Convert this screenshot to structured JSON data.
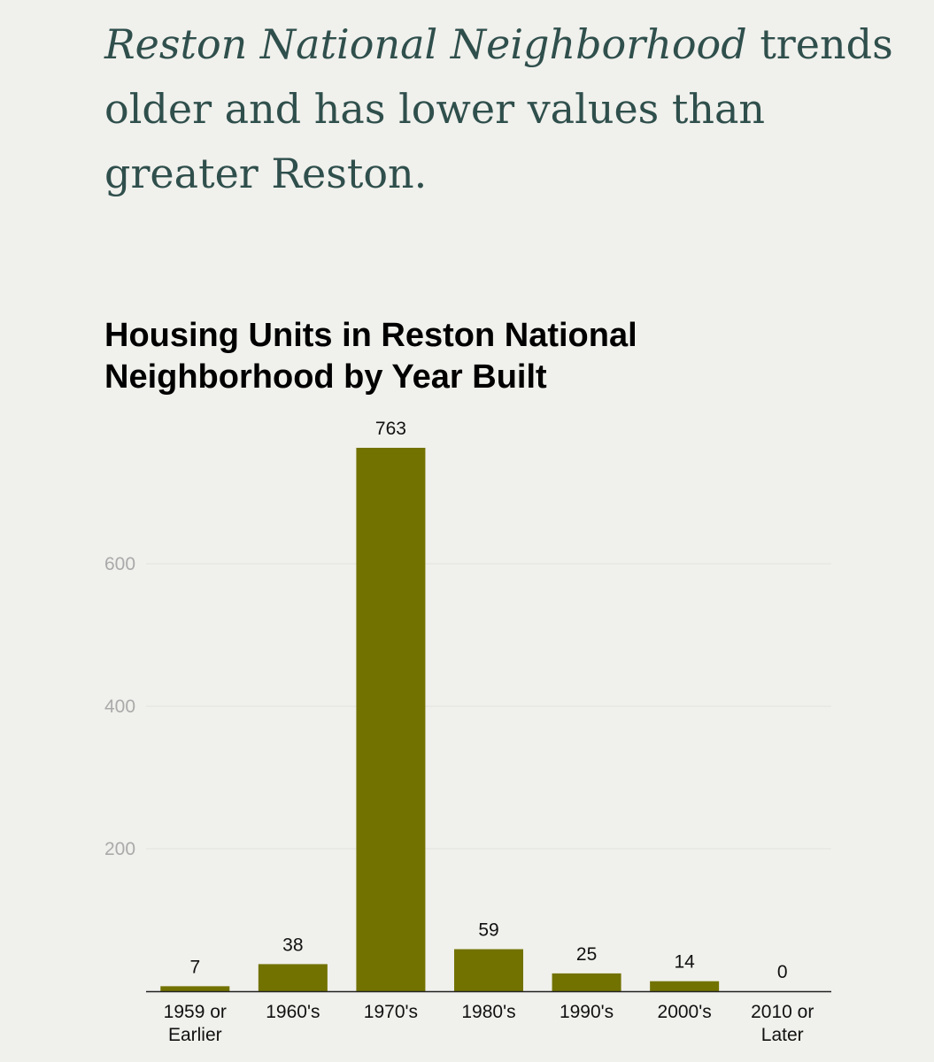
{
  "headline": {
    "emphasis": "Reston National Neighborhood",
    "rest": " trends older and has lower values than greater Reston."
  },
  "chart_data": {
    "type": "bar",
    "title": "Housing Units in Reston National Neighborhood by Year Built",
    "xlabel": "",
    "ylabel": "",
    "categories": [
      [
        "1959 or",
        "Earlier"
      ],
      [
        "1960's"
      ],
      [
        "1970's"
      ],
      [
        "1980's"
      ],
      [
        "1990's"
      ],
      [
        "2000's"
      ],
      [
        "2010 or",
        "Later"
      ]
    ],
    "values": [
      7,
      38,
      763,
      59,
      25,
      14,
      0
    ],
    "data_labels": [
      "7",
      "38",
      "763",
      "59",
      "25",
      "14",
      "0"
    ],
    "ylim": [
      0,
      763
    ],
    "yticks": [
      200,
      400,
      600
    ],
    "grid": true,
    "legend": "none",
    "bar_color": "#727200"
  }
}
